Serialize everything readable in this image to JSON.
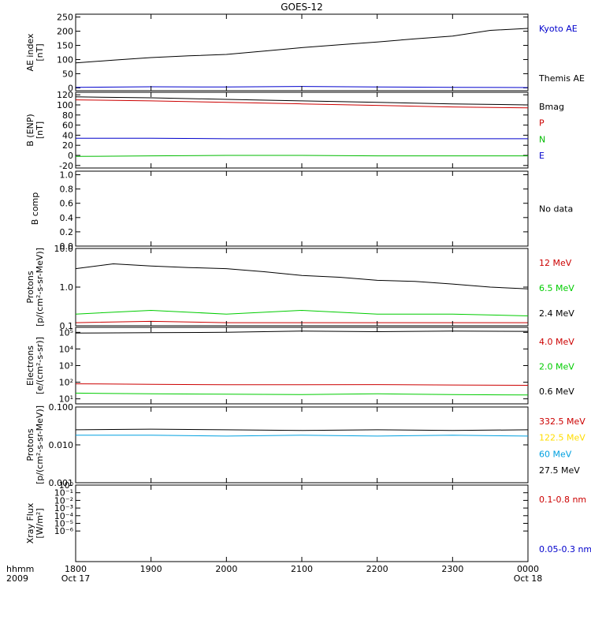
{
  "title": "GOES-12",
  "x_axis": {
    "ticks": [
      "1800",
      "1900",
      "2000",
      "2100",
      "2200",
      "2300",
      "0000"
    ],
    "start_label": "Oct 17",
    "end_label": "Oct 18",
    "row_label": "hhmm",
    "year_label": "2009"
  },
  "chart_data": [
    {
      "id": "ae",
      "type": "line",
      "ylabel": [
        "AE index",
        "[nT]"
      ],
      "ylim": [
        -10,
        260
      ],
      "scale": "linear",
      "yticks": [
        "250",
        "200",
        "150",
        "100",
        "50",
        "0"
      ],
      "ytick_values": [
        250,
        200,
        150,
        100,
        50,
        0
      ],
      "legend": [
        {
          "label": "Kyoto AE",
          "color": "#0000cc"
        },
        {
          "label": "Themis AE",
          "color": "#000000"
        }
      ],
      "series": [
        {
          "color": "#000000",
          "x_hours": [
            0,
            0.5,
            1,
            1.5,
            2,
            2.5,
            3,
            3.5,
            4,
            4.5,
            5,
            5.5,
            6
          ],
          "values": [
            88,
            98,
            107,
            113,
            118,
            130,
            142,
            152,
            162,
            173,
            183,
            203,
            210
          ]
        },
        {
          "color": "#0000cc",
          "x_hours": [
            0,
            1,
            2,
            3,
            4,
            5,
            6
          ],
          "values": [
            2,
            4,
            3,
            5,
            3,
            2,
            1
          ]
        }
      ]
    },
    {
      "id": "b",
      "type": "line",
      "ylabel": [
        "B (ENP)",
        "[nT]"
      ],
      "ylim": [
        -25,
        125
      ],
      "scale": "linear",
      "yticks": [
        "120",
        "100",
        "80",
        "60",
        "40",
        "20",
        "0",
        "-20"
      ],
      "ytick_values": [
        120,
        100,
        80,
        60,
        40,
        20,
        0,
        -20
      ],
      "legend": [
        {
          "label": "Bmag",
          "color": "#000000"
        },
        {
          "label": "P",
          "color": "#cc0000"
        },
        {
          "label": "N",
          "color": "#00bb00"
        },
        {
          "label": "E",
          "color": "#0000cc"
        }
      ],
      "series": [
        {
          "color": "#000000",
          "x_hours": [
            0,
            1,
            2,
            3,
            4,
            5,
            6
          ],
          "values": [
            116,
            114,
            111,
            108,
            105,
            102,
            100
          ]
        },
        {
          "color": "#cc0000",
          "x_hours": [
            0,
            1,
            2,
            3,
            4,
            5,
            6
          ],
          "values": [
            110,
            108,
            105,
            102,
            99,
            96,
            94
          ]
        },
        {
          "color": "#0000cc",
          "x_hours": [
            0,
            1,
            2,
            3,
            4,
            5,
            6
          ],
          "values": [
            34,
            34,
            33,
            33,
            33,
            33,
            33
          ]
        },
        {
          "color": "#00bb00",
          "x_hours": [
            0,
            1,
            2,
            3,
            4,
            5,
            6
          ],
          "values": [
            -2,
            -1,
            0,
            0,
            -1,
            -1,
            -1
          ]
        }
      ]
    },
    {
      "id": "bcomp",
      "type": "line",
      "ylabel": [
        "B comp"
      ],
      "ylim": [
        0,
        1.05
      ],
      "scale": "linear",
      "yticks": [
        "1.0",
        "0.8",
        "0.6",
        "0.4",
        "0.2",
        "0.0"
      ],
      "ytick_values": [
        1.0,
        0.8,
        0.6,
        0.4,
        0.2,
        0.0
      ],
      "legend": [
        {
          "label": "No data",
          "color": "#000000"
        }
      ],
      "series": []
    },
    {
      "id": "protons1",
      "type": "line",
      "ylabel": [
        "Protons",
        "[p/(cm²-s-sr-MeV)]"
      ],
      "ylim": [
        0.1,
        10
      ],
      "scale": "log",
      "yticks": [
        "10.0",
        "1.0",
        "0.1"
      ],
      "ytick_values": [
        10,
        1,
        0.1
      ],
      "legend": [
        {
          "label": "12 MeV",
          "color": "#cc0000"
        },
        {
          "label": "6.5 MeV",
          "color": "#00cc00"
        },
        {
          "label": "2.4 MeV",
          "color": "#000000"
        }
      ],
      "series": [
        {
          "color": "#000000",
          "x_hours": [
            0,
            0.5,
            1,
            1.5,
            2,
            2.5,
            3,
            3.5,
            4,
            4.5,
            5,
            5.5,
            6
          ],
          "values": [
            3.0,
            4.0,
            3.5,
            3.2,
            3.0,
            2.5,
            2.0,
            1.8,
            1.5,
            1.4,
            1.2,
            1.0,
            0.9
          ]
        },
        {
          "color": "#00cc00",
          "x_hours": [
            0,
            1,
            2,
            3,
            4,
            5,
            6
          ],
          "values": [
            0.2,
            0.25,
            0.2,
            0.25,
            0.2,
            0.2,
            0.18
          ]
        },
        {
          "color": "#cc0000",
          "x_hours": [
            0,
            1,
            2,
            3,
            4,
            5,
            6
          ],
          "values": [
            0.12,
            0.13,
            0.12,
            0.12,
            0.12,
            0.12,
            0.12
          ]
        }
      ]
    },
    {
      "id": "electrons",
      "type": "line",
      "ylabel": [
        "Electrons",
        "[e/(cm²-s-sr)]"
      ],
      "ylim": [
        5,
        200000
      ],
      "scale": "log",
      "yticks": [
        "10⁵",
        "10⁴",
        "10³",
        "10²",
        "10¹"
      ],
      "ytick_values": [
        100000,
        10000,
        1000,
        100,
        10
      ],
      "legend": [
        {
          "label": "4.0 MeV",
          "color": "#cc0000"
        },
        {
          "label": "2.0 MeV",
          "color": "#00cc00"
        },
        {
          "label": "0.6 MeV",
          "color": "#000000"
        }
      ],
      "series": [
        {
          "color": "#000000",
          "x_hours": [
            0,
            1,
            2,
            3,
            4,
            5,
            6
          ],
          "values": [
            90000,
            95000,
            100000,
            120000,
            110000,
            120000,
            115000
          ]
        },
        {
          "color": "#cc0000",
          "x_hours": [
            0,
            1,
            2,
            3,
            4,
            5,
            6
          ],
          "values": [
            80,
            75,
            70,
            70,
            72,
            68,
            65
          ]
        },
        {
          "color": "#00cc00",
          "x_hours": [
            0,
            1,
            2,
            3,
            4,
            5,
            6
          ],
          "values": [
            22,
            20,
            19,
            18,
            20,
            18,
            17
          ]
        }
      ]
    },
    {
      "id": "protons2",
      "type": "line",
      "ylabel": [
        "Protons",
        "[p/(cm²-s-sr-MeV)]"
      ],
      "ylim": [
        0.001,
        0.1
      ],
      "scale": "log",
      "yticks": [
        "0.100",
        "0.010",
        "0.001"
      ],
      "ytick_values": [
        0.1,
        0.01,
        0.001
      ],
      "legend": [
        {
          "label": "332.5 MeV",
          "color": "#cc0000"
        },
        {
          "label": "122.5 MeV",
          "color": "#ffdd00"
        },
        {
          "label": "60 MeV",
          "color": "#00a0e0"
        },
        {
          "label": "27.5 MeV",
          "color": "#000000"
        }
      ],
      "series": [
        {
          "color": "#000000",
          "x_hours": [
            0,
            1,
            2,
            3,
            4,
            5,
            6
          ],
          "values": [
            0.025,
            0.026,
            0.025,
            0.024,
            0.025,
            0.024,
            0.025
          ]
        },
        {
          "color": "#00a0e0",
          "x_hours": [
            0,
            1,
            2,
            3,
            4,
            5,
            6
          ],
          "values": [
            0.018,
            0.018,
            0.017,
            0.018,
            0.017,
            0.018,
            0.017
          ]
        }
      ]
    },
    {
      "id": "xray",
      "type": "line",
      "ylabel": [
        "Xray Flux",
        "[W/m²]"
      ],
      "ylim": [
        1e-10,
        1
      ],
      "scale": "log",
      "yticks": [
        "10⁰",
        "10⁻¹",
        "10⁻²",
        "10⁻³",
        "10⁻⁴",
        "10⁻⁵",
        "10⁻⁶"
      ],
      "ytick_values": [
        1,
        0.1,
        0.01,
        0.001,
        0.0001,
        1e-05,
        1e-06
      ],
      "legend": [
        {
          "label": "0.1-0.8 nm",
          "color": "#cc0000"
        },
        {
          "label": "0.05-0.3 nm",
          "color": "#0000cc"
        }
      ],
      "series": []
    }
  ]
}
